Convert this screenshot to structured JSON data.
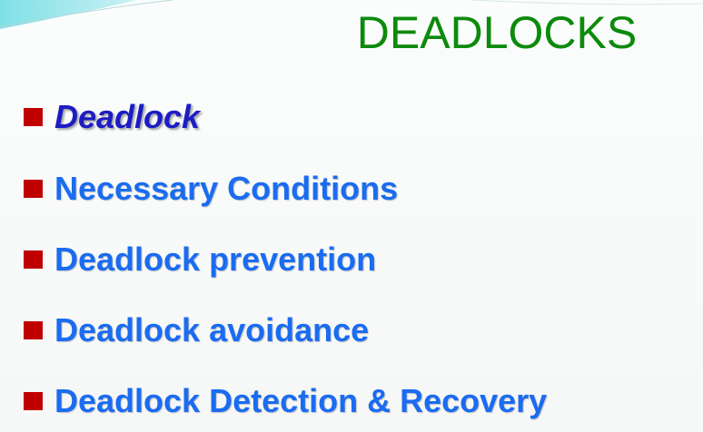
{
  "slide": {
    "title": "DEADLOCKS",
    "bullets": [
      {
        "text": "Deadlock",
        "emphasized": true
      },
      {
        "text": "Necessary Conditions",
        "emphasized": false
      },
      {
        "text": "Deadlock prevention",
        "emphasized": false
      },
      {
        "text": "Deadlock avoidance",
        "emphasized": false
      },
      {
        "text": "Deadlock Detection & Recovery",
        "emphasized": false
      }
    ]
  },
  "colors": {
    "title": "#0d8a0d",
    "bullet_marker": "#c00000",
    "bullet_text": "#1a6cf0",
    "emphasized_text": "#1c1cc4"
  }
}
